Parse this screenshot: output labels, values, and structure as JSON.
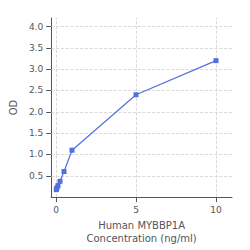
{
  "chart_data": {
    "type": "line",
    "x": [
      0.0156,
      0.0313,
      0.0625,
      0.125,
      0.25,
      0.5,
      1.0,
      5.0,
      10.0
    ],
    "values": [
      0.175,
      0.19,
      0.22,
      0.27,
      0.37,
      0.6,
      1.1,
      2.4,
      3.2
    ],
    "xlabel": "Human MYBBP1A\nConcentration (ng/ml)",
    "ylabel": "OD",
    "xlim": [
      -0.3,
      11
    ],
    "ylim": [
      0,
      4.2
    ],
    "xticks": [
      0,
      5,
      10
    ],
    "yticks": [
      0.5,
      {
        "value": 1,
        "label": "1.0"
      },
      1.5,
      {
        "value": 2,
        "label": "2.0"
      },
      2.5,
      {
        "value": 3,
        "label": "3.0"
      },
      3.5,
      {
        "value": 4,
        "label": "4.0"
      }
    ],
    "grid": true,
    "marker": "square"
  }
}
